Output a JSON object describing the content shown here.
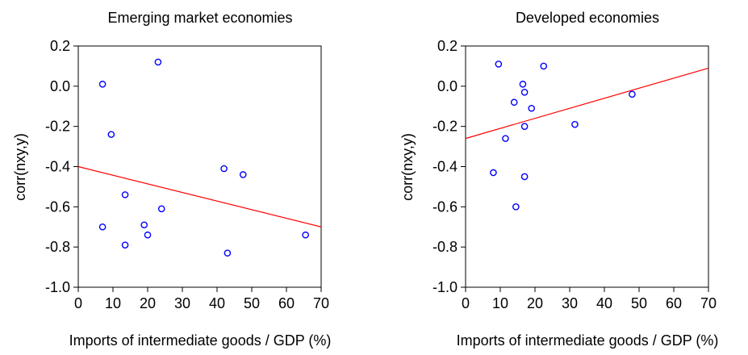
{
  "chart_data": [
    {
      "type": "scatter",
      "title": "Emerging market economies",
      "xlabel": "Imports of intermediate goods / GDP (%)",
      "ylabel": "corr(nxy,y)",
      "xlim": [
        0,
        70
      ],
      "ylim": [
        -1.0,
        0.2
      ],
      "x_ticks": [
        "0",
        "10",
        "20",
        "30",
        "40",
        "50",
        "60",
        "70"
      ],
      "y_ticks": [
        "0.2",
        "0.0",
        "-0.2",
        "-0.4",
        "-0.6",
        "-0.8",
        "-1.0"
      ],
      "grid": false,
      "marker_color": "#0000ff",
      "line_color": "#ff0000",
      "points": [
        {
          "x": 7,
          "y": 0.01
        },
        {
          "x": 23,
          "y": 0.12
        },
        {
          "x": 9.5,
          "y": -0.24
        },
        {
          "x": 42,
          "y": -0.41
        },
        {
          "x": 47.5,
          "y": -0.44
        },
        {
          "x": 13.5,
          "y": -0.54
        },
        {
          "x": 24,
          "y": -0.61
        },
        {
          "x": 7,
          "y": -0.7
        },
        {
          "x": 19,
          "y": -0.69
        },
        {
          "x": 20,
          "y": -0.74
        },
        {
          "x": 65.5,
          "y": -0.74
        },
        {
          "x": 13.5,
          "y": -0.79
        },
        {
          "x": 43,
          "y": -0.83
        }
      ],
      "fit_line": {
        "x": [
          0,
          70
        ],
        "y": [
          -0.4,
          -0.7
        ]
      }
    },
    {
      "type": "scatter",
      "title": "Developed economies",
      "xlabel": "Imports of intermediate goods / GDP (%)",
      "ylabel": "corr(nxy,y)",
      "xlim": [
        0,
        70
      ],
      "ylim": [
        -1.0,
        0.2
      ],
      "x_ticks": [
        "0",
        "10",
        "20",
        "30",
        "40",
        "50",
        "60",
        "70"
      ],
      "y_ticks": [
        "0.2",
        "0.0",
        "-0.2",
        "-0.4",
        "-0.6",
        "-0.8",
        "-1.0"
      ],
      "grid": false,
      "marker_color": "#0000ff",
      "line_color": "#ff0000",
      "points": [
        {
          "x": 9.5,
          "y": 0.11
        },
        {
          "x": 22.5,
          "y": 0.1
        },
        {
          "x": 16.5,
          "y": 0.01
        },
        {
          "x": 17,
          "y": -0.03
        },
        {
          "x": 14,
          "y": -0.08
        },
        {
          "x": 19,
          "y": -0.11
        },
        {
          "x": 48,
          "y": -0.04
        },
        {
          "x": 17,
          "y": -0.2
        },
        {
          "x": 31.5,
          "y": -0.19
        },
        {
          "x": 11.5,
          "y": -0.26
        },
        {
          "x": 8,
          "y": -0.43
        },
        {
          "x": 17,
          "y": -0.45
        },
        {
          "x": 14.5,
          "y": -0.6
        }
      ],
      "fit_line": {
        "x": [
          0,
          70
        ],
        "y": [
          -0.26,
          0.09
        ]
      }
    }
  ]
}
